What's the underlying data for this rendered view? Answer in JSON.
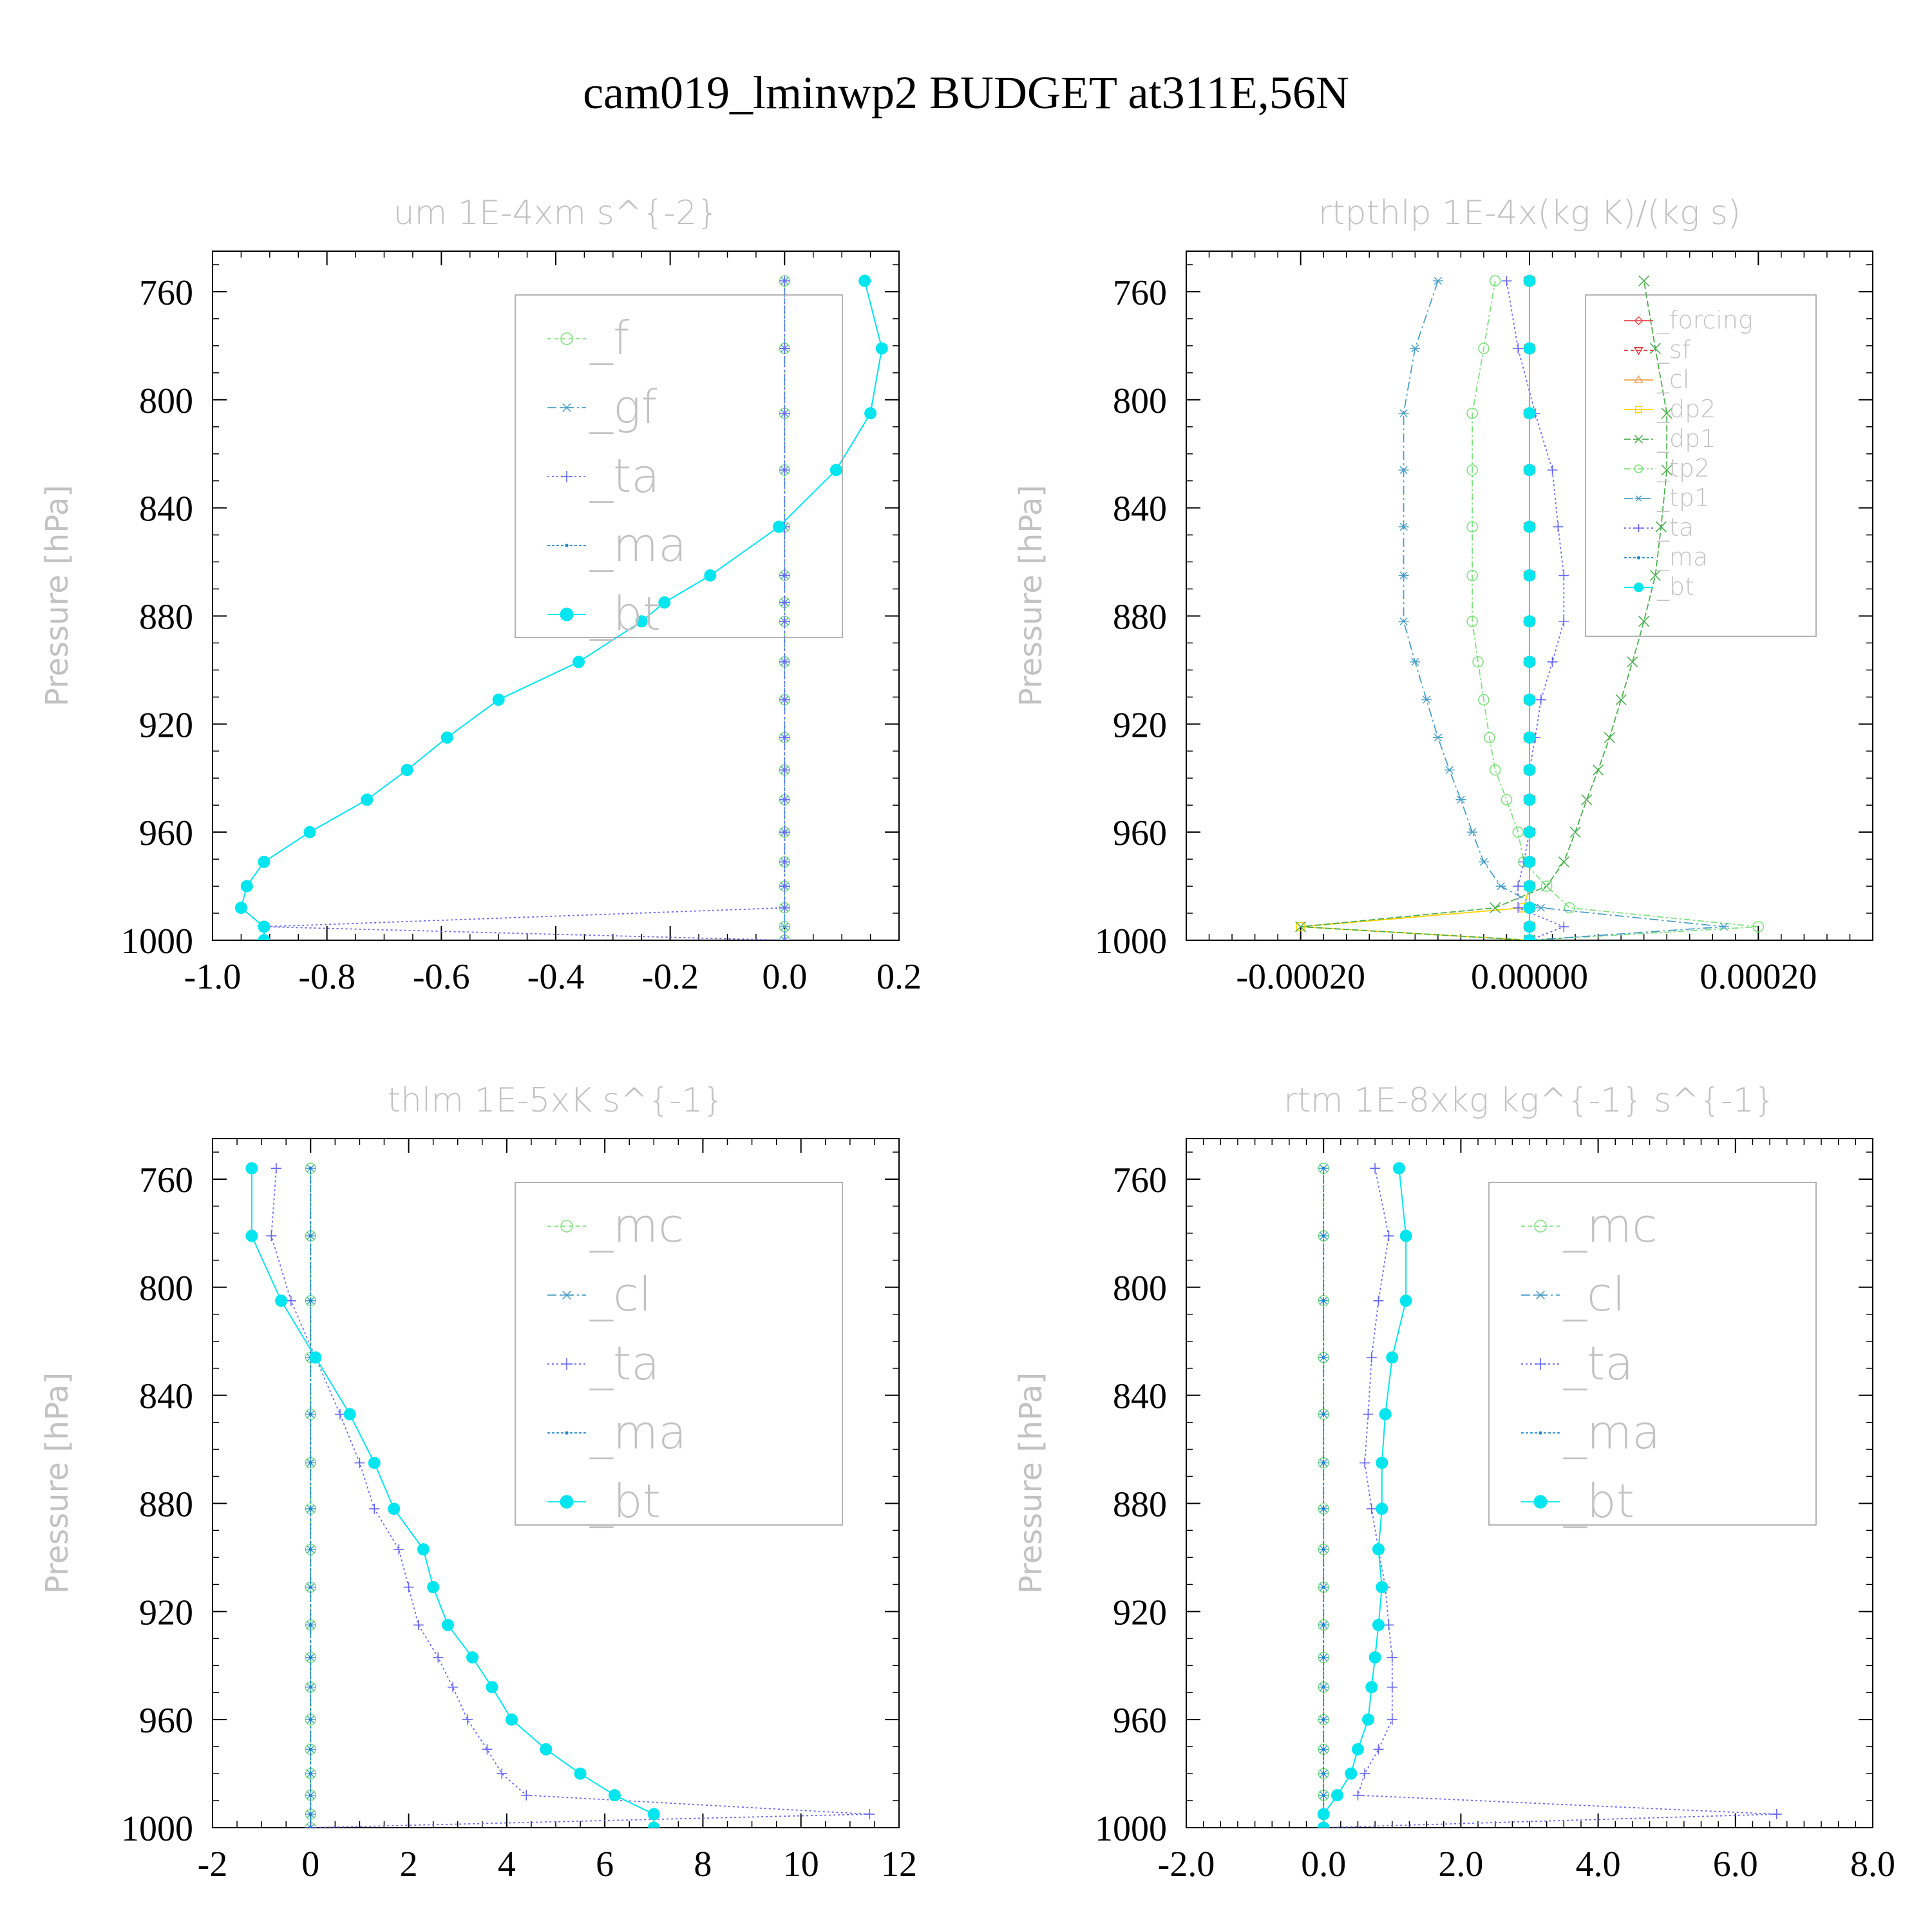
{
  "figure": {
    "title": "cam019_lminwp2  BUDGET at311E,56N"
  },
  "chart_data": [
    {
      "type": "line",
      "title": "um  1E-4xm s^{-2}",
      "ylabel": "Pressure [hPa]",
      "xlim": [
        -1.0,
        0.2
      ],
      "ylim": [
        1000,
        745
      ],
      "xticks": [
        -1.0,
        -0.8,
        -0.6,
        -0.4,
        -0.2,
        0.0,
        0.2
      ],
      "xtick_labels": [
        "-1.0",
        "-0.8",
        "-0.6",
        "-0.4",
        "-0.2",
        "0.0",
        "0.2"
      ],
      "xminor_step": 0.05,
      "yticks": [
        760,
        800,
        840,
        880,
        920,
        960,
        1000
      ],
      "yminor_step": 10,
      "levels": [
        1000,
        995,
        988,
        980,
        971,
        960,
        948,
        937,
        925,
        911,
        897,
        882,
        875,
        865,
        847,
        826,
        805,
        781,
        756
      ],
      "legend": {
        "position": "top-right"
      },
      "series": [
        {
          "name": "_f",
          "color": "#7fe07f",
          "marker": "circle",
          "dash": "6,5",
          "values": [
            0,
            0,
            0,
            0,
            0,
            0,
            0,
            0,
            0,
            0,
            0,
            0,
            0,
            0,
            0,
            0,
            0,
            0,
            0
          ]
        },
        {
          "name": "_gf",
          "color": "#4b9fc7",
          "marker": "star",
          "dash": "14,5,3,5",
          "values": [
            0,
            0,
            0,
            0,
            0,
            0,
            0,
            0,
            0,
            0,
            0,
            0,
            0,
            0,
            0,
            0,
            0,
            0,
            0
          ]
        },
        {
          "name": "_ta",
          "color": "#6666ee",
          "marker": "plus",
          "dash": "3,4",
          "values": [
            0,
            -0.91,
            0,
            0,
            0,
            0,
            0,
            0,
            0,
            0,
            0,
            0,
            0,
            0,
            0,
            0,
            0,
            0,
            0
          ]
        },
        {
          "name": "_ma",
          "color": "#1e88cc",
          "marker": "dot",
          "dash": "4,3",
          "values": [
            -0.91,
            -0.91,
            -0.95,
            -0.94,
            -0.91,
            -0.83,
            -0.73,
            -0.66,
            -0.59,
            -0.5,
            -0.36,
            -0.25,
            -0.21,
            -0.13,
            -0.01,
            0.09,
            0.15,
            0.17,
            0.14
          ]
        },
        {
          "name": "_bt",
          "color": "#00e5ee",
          "marker": "filled",
          "dash": "",
          "values": [
            -0.91,
            -0.91,
            -0.95,
            -0.94,
            -0.91,
            -0.83,
            -0.73,
            -0.66,
            -0.59,
            -0.5,
            -0.36,
            -0.25,
            -0.21,
            -0.13,
            -0.01,
            0.09,
            0.15,
            0.17,
            0.14
          ]
        }
      ]
    },
    {
      "type": "line",
      "title": "rtpthlp  1E-4x(kg K)/(kg s)",
      "ylabel": "Pressure [hPa]",
      "xlim": [
        -0.0003,
        0.0003
      ],
      "ylim": [
        1000,
        745
      ],
      "xticks": [
        -0.0002,
        0.0,
        0.0002
      ],
      "xtick_labels": [
        "-0.00020",
        "0.00000",
        "0.00020"
      ],
      "xminor_step": 2e-05,
      "yticks": [
        760,
        800,
        840,
        880,
        920,
        960,
        1000
      ],
      "yminor_step": 10,
      "levels": [
        1000,
        995,
        988,
        980,
        971,
        960,
        948,
        937,
        925,
        911,
        897,
        882,
        865,
        847,
        826,
        805,
        781,
        756
      ],
      "legend": {
        "position": "top-right"
      },
      "series": [
        {
          "name": "_forcing",
          "color": "#e8464b",
          "marker": "diamond",
          "dash": "",
          "values": [
            0,
            0,
            0,
            0,
            0,
            0,
            0,
            0,
            0,
            0,
            0,
            0,
            0,
            0,
            0,
            0,
            0,
            0
          ]
        },
        {
          "name": "_sf",
          "color": "#e23030",
          "marker": "triangle-down",
          "dash": "6,4",
          "values": [
            0,
            0,
            0,
            0,
            0,
            0,
            0,
            0,
            0,
            0,
            0,
            0,
            0,
            0,
            0,
            0,
            0,
            0
          ]
        },
        {
          "name": "_cl",
          "color": "#f0a050",
          "marker": "triangle-up",
          "dash": "",
          "values": [
            0,
            0,
            0,
            0,
            0,
            0,
            0,
            0,
            0,
            0,
            0,
            0,
            0,
            0,
            0,
            0,
            0,
            0
          ]
        },
        {
          "name": "_dp2",
          "color": "#ffd200",
          "marker": "square",
          "dash": "",
          "values": [
            0,
            -0.0002,
            -5e-06,
            0,
            0,
            0,
            0,
            0,
            0,
            0,
            0,
            0,
            0,
            0,
            0,
            0,
            0,
            0
          ]
        },
        {
          "name": "_dp1",
          "color": "#4caf50",
          "marker": "cross",
          "dash": "10,4",
          "values": [
            0,
            -0.0002,
            -3e-05,
            1.5e-05,
            3e-05,
            4e-05,
            5e-05,
            6e-05,
            7e-05,
            8e-05,
            9e-05,
            0.0001,
            0.00011,
            0.000115,
            0.00012,
            0.00012,
            0.00011,
            0.0001
          ]
        },
        {
          "name": "_tp2",
          "color": "#7fe07f",
          "marker": "circle",
          "dash": "10,4,3,4",
          "values": [
            0,
            0.0002,
            3.5e-05,
            1.5e-05,
            -5e-06,
            -1e-05,
            -2e-05,
            -3e-05,
            -3.5e-05,
            -4e-05,
            -4.5e-05,
            -5e-05,
            -5e-05,
            -5e-05,
            -5e-05,
            -5e-05,
            -4e-05,
            -3e-05
          ]
        },
        {
          "name": "_tp1",
          "color": "#4b9fc7",
          "marker": "star",
          "dash": "14,5,3,5",
          "values": [
            0,
            0.00017,
            1e-05,
            -2.5e-05,
            -4e-05,
            -5e-05,
            -6e-05,
            -7e-05,
            -8e-05,
            -9e-05,
            -0.0001,
            -0.00011,
            -0.00011,
            -0.00011,
            -0.00011,
            -0.00011,
            -0.0001,
            -8e-05
          ]
        },
        {
          "name": "_ta",
          "color": "#6666ee",
          "marker": "plus",
          "dash": "3,4",
          "values": [
            0,
            3e-05,
            -1e-05,
            -1e-05,
            -5e-06,
            0,
            0,
            0,
            5e-06,
            1e-05,
            2e-05,
            3e-05,
            3e-05,
            2.5e-05,
            2e-05,
            5e-06,
            -1e-05,
            -2e-05
          ]
        },
        {
          "name": "_ma",
          "color": "#1e88cc",
          "marker": "dot",
          "dash": "4,3",
          "values": [
            0,
            0,
            0,
            0,
            0,
            0,
            0,
            0,
            0,
            0,
            0,
            0,
            0,
            0,
            0,
            0,
            0,
            0
          ]
        },
        {
          "name": "_bt",
          "color": "#00e5ee",
          "marker": "filled",
          "dash": "",
          "values": [
            0,
            0,
            0,
            0,
            0,
            0,
            0,
            0,
            0,
            0,
            0,
            0,
            0,
            0,
            0,
            0,
            0,
            0
          ]
        }
      ]
    },
    {
      "type": "line",
      "title": "thlm  1E-5xK s^{-1}",
      "ylabel": "Pressure [hPa]",
      "xlim": [
        -2,
        12
      ],
      "ylim": [
        1000,
        745
      ],
      "xticks": [
        -2,
        0,
        2,
        4,
        6,
        8,
        10,
        12
      ],
      "xtick_labels": [
        "-2",
        "0",
        "2",
        "4",
        "6",
        "8",
        "10",
        "12"
      ],
      "xminor_step": 0.5,
      "yticks": [
        760,
        800,
        840,
        880,
        920,
        960,
        1000
      ],
      "yminor_step": 10,
      "levels": [
        1000,
        995,
        988,
        980,
        971,
        960,
        948,
        937,
        925,
        911,
        897,
        882,
        865,
        847,
        826,
        805,
        781,
        756
      ],
      "legend": {
        "position": "top-right"
      },
      "series": [
        {
          "name": "_mc",
          "color": "#7fe07f",
          "marker": "circle",
          "dash": "6,5",
          "values": [
            0,
            0,
            0,
            0,
            0,
            0,
            0,
            0,
            0,
            0,
            0,
            0,
            0,
            0,
            0,
            0,
            0,
            0
          ]
        },
        {
          "name": "_cl",
          "color": "#4b9fc7",
          "marker": "star",
          "dash": "14,5,3,5",
          "values": [
            0,
            0,
            0,
            0,
            0,
            0,
            0,
            0,
            0,
            0,
            0,
            0,
            0,
            0,
            0,
            0,
            0,
            0
          ]
        },
        {
          "name": "_ta",
          "color": "#6666ee",
          "marker": "plus",
          "dash": "3,4",
          "values": [
            0,
            11.4,
            4.4,
            3.9,
            3.6,
            3.2,
            2.9,
            2.6,
            2.2,
            2.0,
            1.8,
            1.3,
            1.0,
            0.6,
            0.1,
            -0.4,
            -0.8,
            -0.7
          ]
        },
        {
          "name": "_ma",
          "color": "#1e88cc",
          "marker": "dot",
          "dash": "4,3",
          "values": [
            0,
            0,
            0,
            0,
            0,
            0,
            0,
            0,
            0,
            0,
            0,
            0,
            0,
            0,
            0,
            0,
            0,
            0
          ]
        },
        {
          "name": "_bt",
          "color": "#00e5ee",
          "marker": "filled",
          "dash": "",
          "values": [
            7.0,
            7.0,
            6.2,
            5.5,
            4.8,
            4.1,
            3.7,
            3.3,
            2.8,
            2.5,
            2.3,
            1.7,
            1.3,
            0.8,
            0.1,
            -0.6,
            -1.2,
            -1.2
          ]
        }
      ]
    },
    {
      "type": "line",
      "title": "rtm  1E-8xkg kg^{-1} s^{-1}",
      "ylabel": "Pressure [hPa]",
      "xlim": [
        -2.0,
        8.0
      ],
      "ylim": [
        1000,
        745
      ],
      "xticks": [
        -2,
        0,
        2,
        4,
        6,
        8
      ],
      "xtick_labels": [
        "-2.0",
        "0.0",
        "2.0",
        "4.0",
        "6.0",
        "8.0"
      ],
      "xminor_step": 0.25,
      "yticks": [
        760,
        800,
        840,
        880,
        920,
        960,
        1000
      ],
      "yminor_step": 10,
      "levels": [
        1000,
        995,
        988,
        980,
        971,
        960,
        948,
        937,
        925,
        911,
        897,
        882,
        865,
        847,
        826,
        805,
        781,
        756
      ],
      "legend": {
        "position": "top-right"
      },
      "series": [
        {
          "name": "_mc",
          "color": "#7fe07f",
          "marker": "circle",
          "dash": "6,5",
          "values": [
            0,
            0,
            0,
            0,
            0,
            0,
            0,
            0,
            0,
            0,
            0,
            0,
            0,
            0,
            0,
            0,
            0,
            0
          ]
        },
        {
          "name": "_cl",
          "color": "#4b9fc7",
          "marker": "star",
          "dash": "14,5,3,5",
          "values": [
            0,
            0,
            0,
            0,
            0,
            0,
            0,
            0,
            0,
            0,
            0,
            0,
            0,
            0,
            0,
            0,
            0,
            0
          ]
        },
        {
          "name": "_ta",
          "color": "#6666ee",
          "marker": "plus",
          "dash": "3,4",
          "values": [
            0,
            6.6,
            0.5,
            0.6,
            0.8,
            1.0,
            1.0,
            1.0,
            0.95,
            0.9,
            0.8,
            0.7,
            0.6,
            0.65,
            0.7,
            0.8,
            0.95,
            0.75
          ]
        },
        {
          "name": "_ma",
          "color": "#1e88cc",
          "marker": "dot",
          "dash": "4,3",
          "values": [
            0,
            0,
            0,
            0,
            0,
            0,
            0,
            0,
            0,
            0,
            0,
            0,
            0,
            0,
            0,
            0,
            0,
            0
          ]
        },
        {
          "name": "_bt",
          "color": "#00e5ee",
          "marker": "filled",
          "dash": "",
          "values": [
            0,
            0,
            0.2,
            0.4,
            0.5,
            0.65,
            0.7,
            0.75,
            0.8,
            0.85,
            0.8,
            0.85,
            0.85,
            0.9,
            1.0,
            1.2,
            1.2,
            1.1
          ]
        }
      ]
    }
  ]
}
